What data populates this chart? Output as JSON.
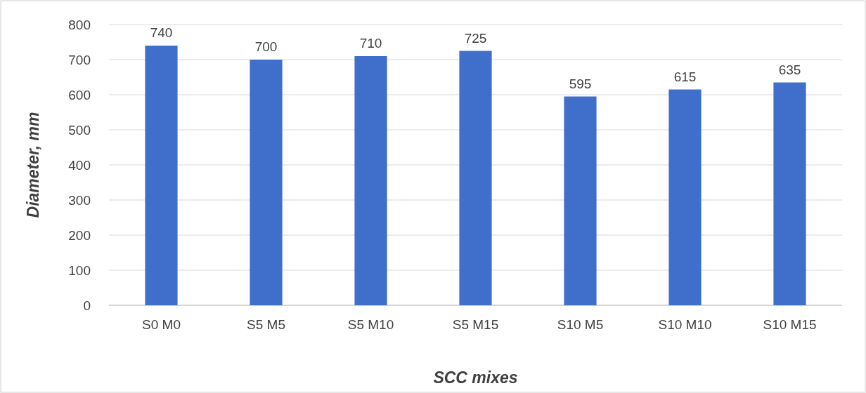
{
  "chart_data": {
    "type": "bar",
    "xlabel": "SCC mixes",
    "ylabel": "Diameter, mm",
    "categories": [
      "S0 M0",
      "S5 M5",
      "S5 M10",
      "S5 M15",
      "S10 M5",
      "S10 M10",
      "S10 M15"
    ],
    "values": [
      740,
      700,
      710,
      725,
      595,
      615,
      635
    ],
    "color": "#3f6fcb",
    "ylim": [
      0,
      800
    ],
    "yticks": [
      0,
      100,
      200,
      300,
      400,
      500,
      600,
      700,
      800
    ],
    "grid": "y",
    "data_labels": true
  }
}
